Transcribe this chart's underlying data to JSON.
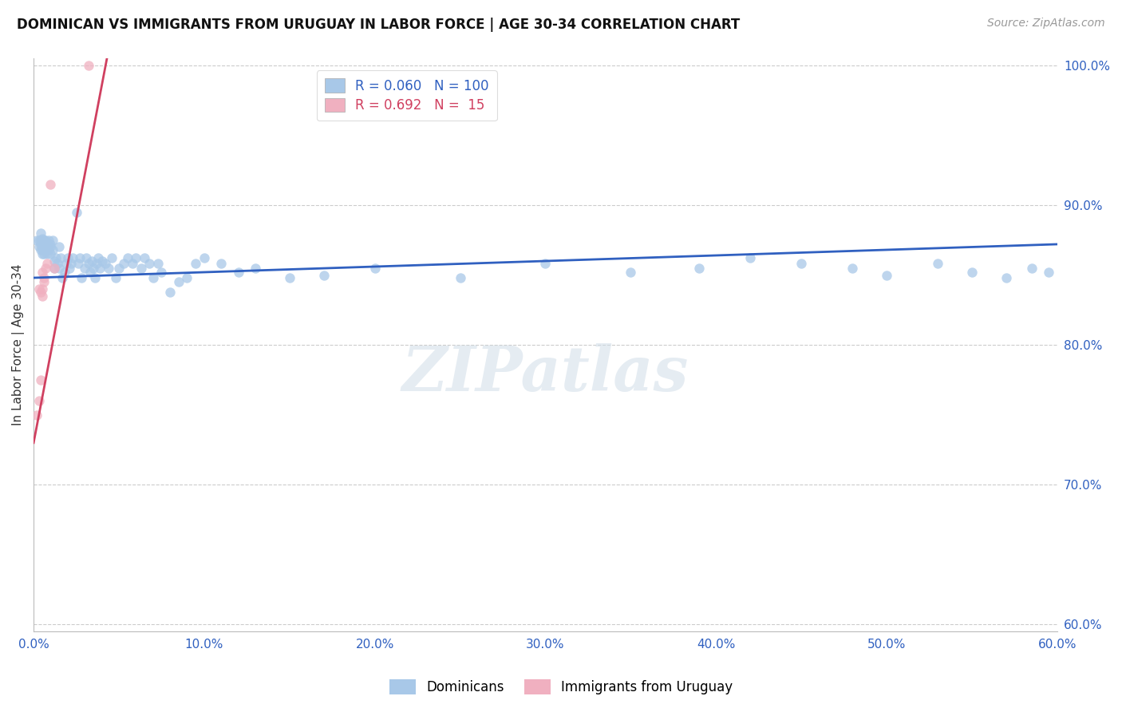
{
  "title": "DOMINICAN VS IMMIGRANTS FROM URUGUAY IN LABOR FORCE | AGE 30-34 CORRELATION CHART",
  "source": "Source: ZipAtlas.com",
  "ylabel": "In Labor Force | Age 30-34",
  "xlim": [
    0.0,
    0.6
  ],
  "ylim": [
    0.595,
    1.005
  ],
  "blue_R": 0.06,
  "blue_N": 100,
  "pink_R": 0.692,
  "pink_N": 15,
  "blue_color": "#a8c8e8",
  "pink_color": "#f0b0c0",
  "blue_line_color": "#3060c0",
  "pink_line_color": "#d04060",
  "legend_labels": [
    "Dominicans",
    "Immigrants from Uruguay"
  ],
  "blue_scatter_x": [
    0.002,
    0.003,
    0.003,
    0.004,
    0.004,
    0.004,
    0.004,
    0.005,
    0.005,
    0.005,
    0.005,
    0.005,
    0.005,
    0.006,
    0.006,
    0.006,
    0.006,
    0.006,
    0.007,
    0.007,
    0.007,
    0.007,
    0.008,
    0.008,
    0.008,
    0.009,
    0.009,
    0.01,
    0.01,
    0.01,
    0.011,
    0.011,
    0.012,
    0.012,
    0.013,
    0.014,
    0.015,
    0.015,
    0.016,
    0.017,
    0.018,
    0.019,
    0.02,
    0.021,
    0.022,
    0.023,
    0.025,
    0.026,
    0.027,
    0.028,
    0.03,
    0.031,
    0.032,
    0.033,
    0.034,
    0.035,
    0.036,
    0.037,
    0.038,
    0.039,
    0.04,
    0.042,
    0.044,
    0.046,
    0.048,
    0.05,
    0.053,
    0.055,
    0.058,
    0.06,
    0.063,
    0.065,
    0.068,
    0.07,
    0.073,
    0.075,
    0.08,
    0.085,
    0.09,
    0.095,
    0.1,
    0.11,
    0.12,
    0.13,
    0.15,
    0.17,
    0.2,
    0.25,
    0.3,
    0.35,
    0.39,
    0.42,
    0.45,
    0.48,
    0.5,
    0.53,
    0.55,
    0.57,
    0.585,
    0.595
  ],
  "blue_scatter_y": [
    0.875,
    0.87,
    0.875,
    0.872,
    0.868,
    0.875,
    0.88,
    0.87,
    0.875,
    0.868,
    0.872,
    0.865,
    0.876,
    0.872,
    0.87,
    0.875,
    0.865,
    0.868,
    0.87,
    0.872,
    0.868,
    0.875,
    0.872,
    0.87,
    0.865,
    0.875,
    0.868,
    0.87,
    0.872,
    0.865,
    0.868,
    0.875,
    0.855,
    0.86,
    0.862,
    0.858,
    0.87,
    0.855,
    0.862,
    0.848,
    0.852,
    0.858,
    0.862,
    0.855,
    0.858,
    0.862,
    0.895,
    0.858,
    0.862,
    0.848,
    0.855,
    0.862,
    0.858,
    0.852,
    0.86,
    0.855,
    0.848,
    0.858,
    0.862,
    0.855,
    0.86,
    0.858,
    0.855,
    0.862,
    0.848,
    0.855,
    0.858,
    0.862,
    0.858,
    0.862,
    0.855,
    0.862,
    0.858,
    0.848,
    0.858,
    0.852,
    0.838,
    0.845,
    0.848,
    0.858,
    0.862,
    0.858,
    0.852,
    0.855,
    0.848,
    0.85,
    0.855,
    0.848,
    0.858,
    0.852,
    0.855,
    0.862,
    0.858,
    0.855,
    0.85,
    0.858,
    0.852,
    0.848,
    0.855,
    0.852
  ],
  "pink_scatter_x": [
    0.002,
    0.003,
    0.003,
    0.004,
    0.004,
    0.005,
    0.005,
    0.005,
    0.006,
    0.006,
    0.007,
    0.008,
    0.01,
    0.012,
    0.032
  ],
  "pink_scatter_y": [
    0.75,
    0.76,
    0.84,
    0.838,
    0.775,
    0.852,
    0.84,
    0.835,
    0.845,
    0.848,
    0.855,
    0.858,
    0.915,
    0.855,
    1.0
  ],
  "blue_line_x": [
    0.0,
    0.6
  ],
  "blue_line_y": [
    0.848,
    0.872
  ],
  "pink_line_x": [
    0.0,
    0.043
  ],
  "pink_line_y": [
    0.73,
    1.005
  ],
  "watermark": "ZIPatlas",
  "yticks": [
    0.6,
    0.7,
    0.8,
    0.9,
    1.0
  ],
  "xticks": [
    0.0,
    0.1,
    0.2,
    0.3,
    0.4,
    0.5,
    0.6
  ],
  "title_fontsize": 12,
  "axis_label_fontsize": 11,
  "tick_fontsize": 11,
  "legend_fontsize": 12,
  "source_fontsize": 10,
  "marker_size": 80
}
